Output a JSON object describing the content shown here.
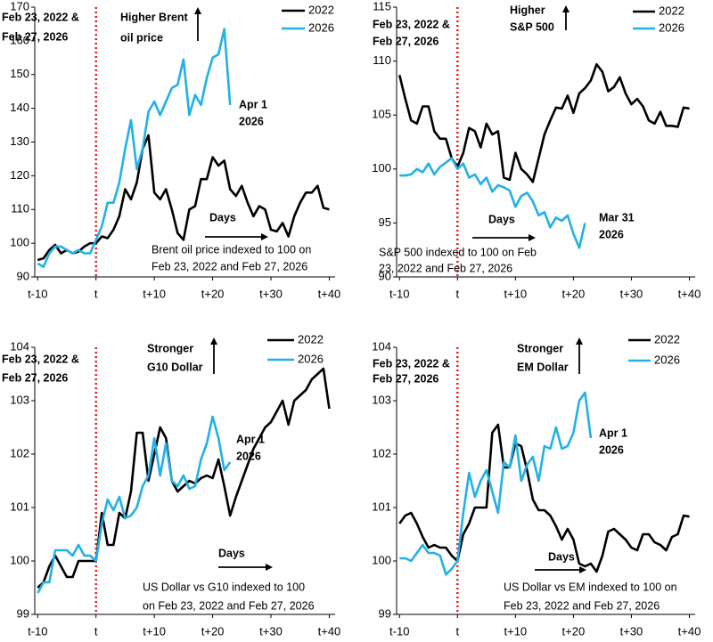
{
  "chart_data": [
    {
      "type": "line",
      "x": [
        -10,
        -9,
        -8,
        -7,
        -6,
        -5,
        -4,
        -3,
        -2,
        -1,
        0,
        1,
        2,
        3,
        4,
        5,
        6,
        7,
        8,
        9,
        10,
        11,
        12,
        13,
        14,
        15,
        16,
        17,
        18,
        19,
        20,
        21,
        22,
        23,
        24,
        25,
        26,
        27,
        28,
        29,
        30,
        31,
        32,
        33,
        34,
        35,
        36,
        37,
        38,
        39,
        40
      ],
      "series": [
        {
          "name": "2022",
          "color": "#000000",
          "values": [
            95,
            95.5,
            98,
            99.5,
            97,
            98,
            97,
            97.5,
            99,
            100,
            100,
            102,
            101.5,
            104,
            108,
            116,
            113,
            118,
            128,
            132,
            115,
            113,
            116,
            110,
            103,
            101,
            110,
            111,
            119,
            119,
            125.5,
            123,
            124.5,
            116,
            114,
            117,
            112,
            108,
            111,
            110,
            104,
            103.5,
            106,
            102,
            108,
            112,
            115,
            115,
            117,
            110.5,
            110
          ]
        },
        {
          "name": "2026",
          "color": "#22b1e6",
          "values": [
            94,
            93,
            97,
            99,
            99,
            98,
            97,
            98,
            97,
            97,
            101,
            105,
            112,
            112,
            118,
            128,
            136.5,
            122,
            128,
            139,
            142,
            138,
            142,
            146,
            147,
            154.5,
            138,
            144,
            141,
            149,
            155,
            156,
            163.5,
            141,
            null,
            null,
            null,
            null,
            null,
            null,
            null,
            null,
            null,
            null,
            null,
            null,
            null,
            null,
            null,
            null,
            null
          ]
        }
      ],
      "xlim": [
        -10.5,
        41
      ],
      "xticks": [
        {
          "value": -10,
          "label": "t-10"
        },
        {
          "value": 0,
          "label": "t"
        },
        {
          "value": 10,
          "label": "t+10"
        },
        {
          "value": 20,
          "label": "t+20"
        },
        {
          "value": 30,
          "label": "t+30"
        },
        {
          "value": 40,
          "label": "t+40"
        }
      ],
      "ylim": [
        90,
        170
      ],
      "yticks": [
        90,
        100,
        110,
        120,
        130,
        140,
        150,
        160,
        170
      ],
      "event_x": 0,
      "event_color": "#e0201b",
      "event_label": [
        "Feb 23, 2022 &",
        "Feb 27, 2026"
      ],
      "direction_label": [
        "Higher Brent",
        "oil price"
      ],
      "axis_note": "Days",
      "note": [
        "Brent oil price indexed to 100 on",
        "Feb 23, 2022 and Feb 27, 2026"
      ],
      "end_label": [
        "Apr 1",
        "2026"
      ]
    },
    {
      "type": "line",
      "x": [
        -10,
        -9,
        -8,
        -7,
        -6,
        -5,
        -4,
        -3,
        -2,
        -1,
        0,
        1,
        2,
        3,
        4,
        5,
        6,
        7,
        8,
        9,
        10,
        11,
        12,
        13,
        14,
        15,
        16,
        17,
        18,
        19,
        20,
        21,
        22,
        23,
        24,
        25,
        26,
        27,
        28,
        29,
        30,
        31,
        32,
        33,
        34,
        35,
        36,
        37,
        38,
        39,
        40
      ],
      "series": [
        {
          "name": "2022",
          "color": "#000000",
          "values": [
            108.7,
            106.5,
            104.5,
            104.2,
            105.8,
            105.8,
            103.5,
            102.8,
            102.8,
            101,
            100.2,
            101.5,
            103.8,
            103.5,
            102,
            104.2,
            103.2,
            103.5,
            99.2,
            99,
            101.5,
            100,
            99.5,
            98.8,
            101,
            103.2,
            104.5,
            105.7,
            105.6,
            106.8,
            105.2,
            107,
            107.5,
            108.2,
            109.7,
            109,
            107.2,
            107.6,
            108.5,
            107,
            106,
            106.5,
            105.8,
            104.5,
            104.2,
            105.3,
            104,
            104,
            103.9,
            105.7,
            105.6
          ]
        },
        {
          "name": "2026",
          "color": "#22b1e6",
          "values": [
            99.4,
            99.4,
            99.5,
            100,
            99.7,
            100.5,
            99.5,
            100.2,
            100.6,
            101,
            100,
            100.5,
            99.2,
            99.5,
            98.6,
            99.2,
            97.9,
            98.5,
            98.3,
            98,
            96.5,
            97.5,
            97.8,
            97,
            95.7,
            96,
            94.6,
            95.5,
            95.2,
            95.7,
            94,
            92.7,
            95,
            null,
            null,
            null,
            null,
            null,
            null,
            null,
            null,
            null,
            null,
            null,
            null,
            null,
            null,
            null,
            null,
            null,
            null
          ]
        }
      ],
      "xlim": [
        -10.5,
        41
      ],
      "xticks": [
        {
          "value": -10,
          "label": "t-10"
        },
        {
          "value": 0,
          "label": "t"
        },
        {
          "value": 10,
          "label": "t+10"
        },
        {
          "value": 20,
          "label": "t+20"
        },
        {
          "value": 30,
          "label": "t+30"
        },
        {
          "value": 40,
          "label": "t+40"
        }
      ],
      "ylim": [
        90,
        115
      ],
      "yticks": [
        90,
        95,
        100,
        105,
        110,
        115
      ],
      "event_x": 0,
      "event_color": "#e0201b",
      "event_label": [
        "Feb 23, 2022 &",
        "Feb 27, 2026"
      ],
      "direction_label": [
        "Higher",
        "S&P 500"
      ],
      "axis_note": "Days",
      "note": [
        "S&P 500 indexed to 100 on Feb",
        "23, 2022 and Feb 27, 2026"
      ],
      "end_label": [
        "Mar 31",
        "2026"
      ]
    },
    {
      "type": "line",
      "x": [
        -10,
        -9,
        -8,
        -7,
        -6,
        -5,
        -4,
        -3,
        -2,
        -1,
        0,
        1,
        2,
        3,
        4,
        5,
        6,
        7,
        8,
        9,
        10,
        11,
        12,
        13,
        14,
        15,
        16,
        17,
        18,
        19,
        20,
        21,
        22,
        23,
        24,
        25,
        26,
        27,
        28,
        29,
        30,
        31,
        32,
        33,
        34,
        35,
        36,
        37,
        38,
        39,
        40
      ],
      "series": [
        {
          "name": "2022",
          "color": "#000000",
          "values": [
            99.5,
            99.6,
            99.9,
            100.1,
            99.9,
            99.7,
            99.7,
            100,
            100,
            100,
            100,
            100.9,
            100.3,
            100.3,
            100.9,
            100.8,
            101.3,
            102.4,
            102.4,
            101.5,
            102,
            102.5,
            102.3,
            101.5,
            101.3,
            101.4,
            101.5,
            101.45,
            101.55,
            101.6,
            101.55,
            101.9,
            101.4,
            100.85,
            101.2,
            101.5,
            101.8,
            102.1,
            102.3,
            102.5,
            102.6,
            102.8,
            103,
            102.55,
            103,
            103.1,
            103.2,
            103.4,
            103.5,
            103.6,
            102.85
          ]
        },
        {
          "name": "2026",
          "color": "#22b1e6",
          "values": [
            99.4,
            99.6,
            99.6,
            100.2,
            100.2,
            100.2,
            100.1,
            100.3,
            100.1,
            100.1,
            100,
            100.7,
            101.15,
            100.95,
            101.2,
            100.8,
            100.85,
            101,
            101.4,
            101.6,
            102.3,
            101.6,
            102.2,
            101.5,
            101.4,
            101.6,
            101.35,
            101.4,
            101.9,
            102.2,
            102.7,
            102.3,
            101.7,
            101.85,
            null,
            null,
            null,
            null,
            null,
            null,
            null,
            null,
            null,
            null,
            null,
            null,
            null,
            null,
            null,
            null,
            null
          ]
        }
      ],
      "xlim": [
        -10.5,
        41
      ],
      "xticks": [
        {
          "value": -10,
          "label": "t-10"
        },
        {
          "value": 0,
          "label": "t"
        },
        {
          "value": 10,
          "label": "t+10"
        },
        {
          "value": 20,
          "label": "t+20"
        },
        {
          "value": 30,
          "label": "t+30"
        },
        {
          "value": 40,
          "label": "t+40"
        }
      ],
      "ylim": [
        99,
        104
      ],
      "yticks": [
        99,
        100,
        101,
        102,
        103,
        104
      ],
      "event_x": 0,
      "event_color": "#e0201b",
      "event_label": [
        "Feb 23, 2022 &",
        "Feb 27, 2026"
      ],
      "direction_label": [
        "Stronger",
        "G10 Dollar"
      ],
      "axis_note": "Days",
      "note": [
        "US Dollar vs G10 indexed to 100",
        "on Feb 23, 2022 and Feb 27, 2026"
      ],
      "end_label": [
        "Apr 1",
        "2026"
      ]
    },
    {
      "type": "line",
      "x": [
        -10,
        -9,
        -8,
        -7,
        -6,
        -5,
        -4,
        -3,
        -2,
        -1,
        0,
        1,
        2,
        3,
        4,
        5,
        6,
        7,
        8,
        9,
        10,
        11,
        12,
        13,
        14,
        15,
        16,
        17,
        18,
        19,
        20,
        21,
        22,
        23,
        24,
        25,
        26,
        27,
        28,
        29,
        30,
        31,
        32,
        33,
        34,
        35,
        36,
        37,
        38,
        39,
        40
      ],
      "series": [
        {
          "name": "2022",
          "color": "#000000",
          "values": [
            100.7,
            100.85,
            100.9,
            100.7,
            100.45,
            100.25,
            100.3,
            100.25,
            100.25,
            100.1,
            100,
            100.5,
            100.7,
            101,
            101,
            101,
            102.4,
            102.55,
            101.75,
            101.75,
            102.2,
            102.15,
            101.7,
            101.15,
            100.95,
            100.95,
            100.85,
            100.65,
            100.4,
            100.6,
            100.4,
            99.95,
            99.9,
            99.95,
            99.8,
            100.1,
            100.55,
            100.6,
            100.5,
            100.4,
            100.25,
            100.2,
            100.5,
            100.5,
            100.35,
            100.3,
            100.2,
            100.45,
            100.5,
            100.85,
            100.83
          ]
        },
        {
          "name": "2026",
          "color": "#22b1e6",
          "values": [
            100.05,
            100.05,
            100,
            100.15,
            100.3,
            100.15,
            100.15,
            100.1,
            99.75,
            99.85,
            100,
            100.9,
            101.65,
            101.2,
            101.5,
            101.7,
            101.3,
            100.9,
            101.85,
            101.75,
            102.35,
            101.5,
            101.8,
            101.95,
            101.5,
            102.15,
            102.1,
            102.5,
            102.1,
            102.15,
            102.4,
            103,
            103.15,
            102.3,
            null,
            null,
            null,
            null,
            null,
            null,
            null,
            null,
            null,
            null,
            null,
            null,
            null,
            null,
            null,
            null,
            null
          ]
        }
      ],
      "xlim": [
        -10.5,
        41
      ],
      "xticks": [
        {
          "value": -10,
          "label": "t-10"
        },
        {
          "value": 0,
          "label": "t"
        },
        {
          "value": 10,
          "label": "t+10"
        },
        {
          "value": 20,
          "label": "t+20"
        },
        {
          "value": 30,
          "label": "t+30"
        },
        {
          "value": 40,
          "label": "t+40"
        }
      ],
      "ylim": [
        99,
        104
      ],
      "yticks": [
        99,
        100,
        101,
        102,
        103,
        104
      ],
      "event_x": 0,
      "event_color": "#e0201b",
      "event_label": [
        "Feb 23, 2022 &",
        "Feb 27, 2026"
      ],
      "direction_label": [
        "Stronger",
        "EM Dollar"
      ],
      "axis_note": "Days",
      "note": [
        "US Dollar vs EM indexed to 100 on",
        "Feb 23, 2022 and Feb 27, 2026"
      ],
      "end_label": [
        "Apr 1",
        "2026"
      ]
    }
  ]
}
